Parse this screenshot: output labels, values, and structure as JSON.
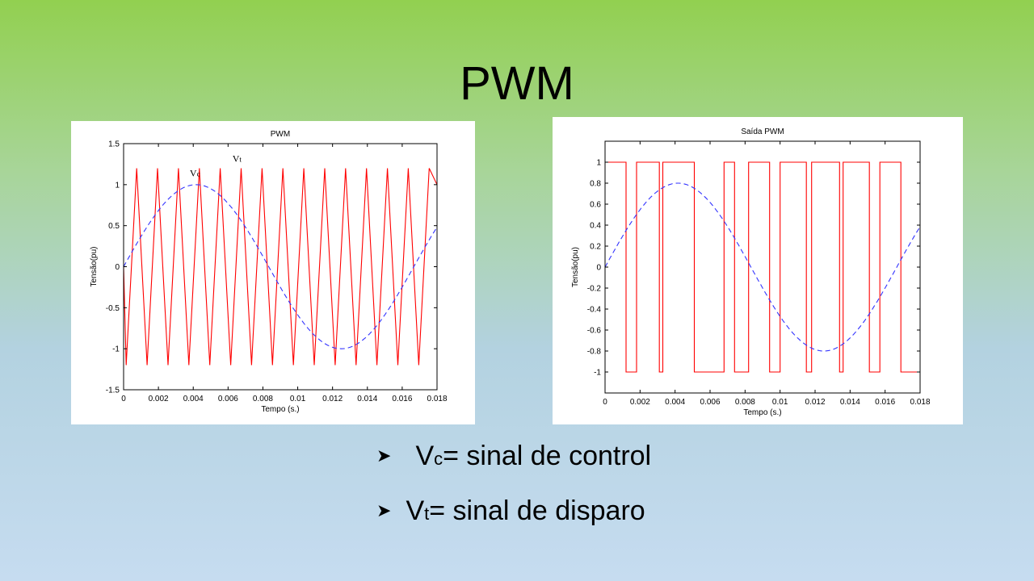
{
  "slide": {
    "title": "PWM",
    "bullets": [
      {
        "symbol": "V",
        "sub": "c",
        "text": "= sinal  de control"
      },
      {
        "symbol": "V",
        "sub": "t",
        "text": "= sinal de disparo"
      }
    ]
  },
  "colors": {
    "triangle": "#ff0000",
    "sine": "#3333ff",
    "axis": "#000000"
  },
  "chart_data": [
    {
      "type": "line",
      "title": "PWM",
      "xlabel": "Tempo (s.)",
      "ylabel": "Tensão(pu)",
      "xlim": [
        0,
        0.018
      ],
      "ylim": [
        -1.5,
        1.5
      ],
      "xticks": [
        0,
        0.002,
        0.004,
        0.006,
        0.008,
        0.01,
        0.012,
        0.014,
        0.016,
        0.018
      ],
      "xtick_labels": [
        "0",
        "0.002",
        "0.004",
        "0.006",
        "0.008",
        "0.01",
        "0.012",
        "0.014",
        "0.016",
        "0.018"
      ],
      "yticks": [
        -1.5,
        -1,
        -0.5,
        0,
        0.5,
        1,
        1.5
      ],
      "ytick_labels": [
        "-1.5",
        "-1",
        "-0.5",
        "0",
        "0.5",
        "1",
        "1.5"
      ],
      "grid": false,
      "series": [
        {
          "name": "Vt",
          "style": "solid",
          "color": "#ff0000",
          "x": [
            0,
            0.00015,
            0.00075,
            0.00135,
            0.00195,
            0.00255,
            0.00315,
            0.00375,
            0.00435,
            0.00495,
            0.00555,
            0.00615,
            0.00675,
            0.00735,
            0.00795,
            0.00855,
            0.00915,
            0.00975,
            0.01035,
            0.01095,
            0.01155,
            0.01215,
            0.01275,
            0.01335,
            0.01395,
            0.01455,
            0.01515,
            0.01575,
            0.01635,
            0.01695,
            0.01755,
            0.018
          ],
          "y": [
            0,
            -1.2,
            1.2,
            -1.2,
            1.2,
            -1.2,
            1.2,
            -1.2,
            1.2,
            -1.2,
            1.2,
            -1.2,
            1.2,
            -1.2,
            1.2,
            -1.2,
            1.2,
            -1.2,
            1.2,
            -1.2,
            1.2,
            -1.2,
            1.2,
            -1.2,
            1.2,
            -1.2,
            1.2,
            -1.2,
            1.2,
            -1.2,
            1.2,
            1.0
          ]
        },
        {
          "name": "Vc",
          "style": "dashed",
          "color": "#3333ff",
          "amplitude": 1.0,
          "frequency": 60
        }
      ],
      "annotations": [
        {
          "text": "V",
          "sub": "t",
          "x": 0.00625,
          "y": 1.28
        },
        {
          "text": "V",
          "sub": "c",
          "x": 0.0038,
          "y": 1.1
        }
      ]
    },
    {
      "type": "line",
      "title": "Saída PWM",
      "xlabel": "Tempo (s.)",
      "ylabel": "Tensão(pu)",
      "xlim": [
        0,
        0.018
      ],
      "ylim": [
        -1.2,
        1.2
      ],
      "xticks": [
        0,
        0.002,
        0.004,
        0.006,
        0.008,
        0.01,
        0.012,
        0.014,
        0.016,
        0.018
      ],
      "xtick_labels": [
        "0",
        "0.002",
        "0.004",
        "0.006",
        "0.008",
        "0.01",
        "0.012",
        "0.014",
        "0.016",
        "0.018"
      ],
      "yticks": [
        -1,
        -0.8,
        -0.6,
        -0.4,
        -0.2,
        0,
        0.2,
        0.4,
        0.6,
        0.8,
        1
      ],
      "ytick_labels": [
        "-1",
        "-0.8",
        "-0.6",
        "-0.4",
        "-0.2",
        "0",
        "0.2",
        "0.4",
        "0.6",
        "0.8",
        "1"
      ],
      "grid": false,
      "series": [
        {
          "name": "Saída",
          "style": "step",
          "color": "#ff0000",
          "x": [
            0,
            0.0012,
            0.0012,
            0.0018,
            0.0018,
            0.0031,
            0.0031,
            0.0033,
            0.0033,
            0.0051,
            0.0051,
            0.0068,
            0.0068,
            0.0074,
            0.0074,
            0.0082,
            0.0082,
            0.0094,
            0.0094,
            0.01,
            0.01,
            0.0115,
            0.0115,
            0.0118,
            0.0118,
            0.0134,
            0.0134,
            0.0136,
            0.0136,
            0.0151,
            0.0151,
            0.0157,
            0.0157,
            0.0169,
            0.0169,
            0.018
          ],
          "y": [
            1,
            1,
            -1,
            -1,
            1,
            1,
            -1,
            -1,
            1,
            1,
            -1,
            -1,
            1,
            1,
            -1,
            -1,
            1,
            1,
            -1,
            -1,
            1,
            1,
            -1,
            -1,
            1,
            1,
            -1,
            -1,
            1,
            1,
            -1,
            -1,
            1,
            1,
            -1,
            -1
          ]
        },
        {
          "name": "Vc",
          "style": "dashed",
          "color": "#3333ff",
          "amplitude": 0.8,
          "frequency": 60
        }
      ]
    }
  ]
}
